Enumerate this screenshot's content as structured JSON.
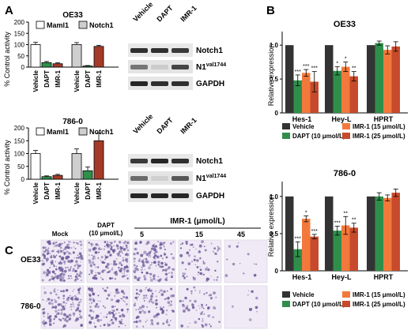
{
  "panels": {
    "A": "A",
    "B": "B",
    "C": "C"
  },
  "colors": {
    "maml_vehicle": "#ffffff",
    "maml_dapt": "#2f8f4a",
    "maml_imr1": "#a33b28",
    "notch_vehicle": "#cfcfcf",
    "notch_dapt": "#2f8f4a",
    "notch_imr1": "#a33b28",
    "vehicle": "#333333",
    "dapt": "#2f8f4a",
    "imr15": "#f2793b",
    "imr25": "#c64a2b",
    "plate": "#efeaf5",
    "colony": "#6e5a9a"
  },
  "panel_a": {
    "ylabel": "% Control activity",
    "yticks": [
      "0",
      "50",
      "100",
      "150",
      "200"
    ],
    "categories": [
      "Vehicle",
      "DAPT",
      "IMR-1"
    ],
    "legend": [
      "Maml1",
      "Notch1"
    ],
    "blots": {
      "lanes": [
        "Vehicle",
        "DAPT",
        "IMR-1"
      ],
      "rows": [
        "Notch1",
        "N1val1744",
        "GAPDH"
      ],
      "n1_main": "N1",
      "n1_sup": "val1744"
    }
  },
  "panel_b": {
    "ylabel": "Relative expression",
    "yticks": [
      "0",
      "0.5",
      "1.0"
    ],
    "categories": [
      "Hes-1",
      "Hey-L",
      "HPRT"
    ],
    "legend": [
      "Vehicle",
      "DAPT (10 μmol/L)",
      "IMR-1 (15 μmol/L)",
      "IMR-1 (25 μmol/L)"
    ]
  },
  "panel_c": {
    "col_labels": [
      "Mock",
      "DAPT",
      "(10 μmol/L)",
      "IMR-1 (μmol/L)",
      "5",
      "15",
      "45"
    ],
    "row_labels": [
      "OE33",
      "786-0"
    ]
  },
  "chart_data": [
    {
      "type": "bar",
      "title": "OE33",
      "ylabel": "% Control activity",
      "ylim": [
        0,
        200
      ],
      "series": [
        {
          "name": "Maml1",
          "categories": [
            "Vehicle",
            "DAPT",
            "IMR-1"
          ],
          "values": [
            100,
            20,
            15
          ],
          "errors": [
            10,
            5,
            4
          ]
        },
        {
          "name": "Notch1",
          "categories": [
            "Vehicle",
            "DAPT",
            "IMR-1"
          ],
          "values": [
            100,
            5,
            92
          ],
          "errors": [
            9,
            2,
            5
          ]
        }
      ]
    },
    {
      "type": "bar",
      "title": "786-0",
      "ylabel": "% Control activity",
      "ylim": [
        0,
        200
      ],
      "series": [
        {
          "name": "Maml1",
          "categories": [
            "Vehicle",
            "DAPT",
            "IMR-1"
          ],
          "values": [
            100,
            10,
            15
          ],
          "errors": [
            12,
            3,
            4
          ]
        },
        {
          "name": "Notch1",
          "categories": [
            "Vehicle",
            "DAPT",
            "IMR-1"
          ],
          "values": [
            100,
            33,
            150
          ],
          "errors": [
            18,
            15,
            30
          ]
        }
      ]
    },
    {
      "type": "bar",
      "title": "OE33",
      "ylabel": "Relative expression",
      "ylim": [
        0,
        1.2
      ],
      "categories": [
        "Hes-1",
        "Hey-L",
        "HPRT"
      ],
      "series": [
        {
          "name": "Vehicle",
          "values": [
            1.0,
            1.0,
            1.0
          ],
          "errors": [
            0,
            0,
            0
          ]
        },
        {
          "name": "DAPT (10 μmol/L)",
          "values": [
            0.48,
            0.62,
            1.03
          ],
          "errors": [
            0.08,
            0.06,
            0.03
          ]
        },
        {
          "name": "IMR-1 (15 μmol/L)",
          "values": [
            0.59,
            0.68,
            0.93
          ],
          "errors": [
            0.05,
            0.07,
            0.06
          ]
        },
        {
          "name": "IMR-1 (25 μmol/L)",
          "values": [
            0.46,
            0.54,
            0.98
          ],
          "errors": [
            0.15,
            0.07,
            0.07
          ]
        }
      ],
      "annotations": [
        "***",
        "***",
        "***",
        "*",
        "*",
        "**",
        "**"
      ]
    },
    {
      "type": "bar",
      "title": "786-0",
      "ylabel": "Relative expression",
      "ylim": [
        0,
        1.2
      ],
      "categories": [
        "Hes-1",
        "Hey-L",
        "HPRT"
      ],
      "series": [
        {
          "name": "Vehicle",
          "values": [
            1.0,
            1.0,
            1.0
          ],
          "errors": [
            0,
            0,
            0
          ]
        },
        {
          "name": "DAPT (10 μmol/L)",
          "values": [
            0.29,
            0.54,
            1.0
          ],
          "errors": [
            0.1,
            0.06,
            0.05
          ]
        },
        {
          "name": "IMR-1 (15 μmol/L)",
          "values": [
            0.7,
            0.61,
            0.98
          ],
          "errors": [
            0.04,
            0.12,
            0.04
          ]
        },
        {
          "name": "IMR-1 (25 μmol/L)",
          "values": [
            0.46,
            0.58,
            1.05
          ],
          "errors": [
            0.03,
            0.06,
            0.05
          ]
        }
      ],
      "annotations": [
        "***",
        "*",
        "***",
        "***",
        "**",
        "**"
      ]
    }
  ]
}
